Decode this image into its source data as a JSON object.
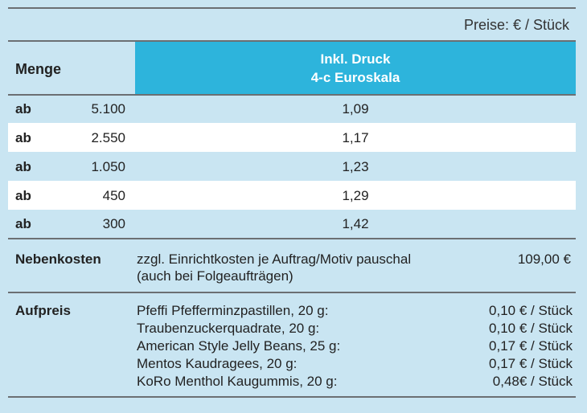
{
  "header": {
    "price_note": "Preise: € / Stück",
    "menge_label": "Menge",
    "druck_line1": "Inkl. Druck",
    "druck_line2": "4-c Euroskala"
  },
  "rows": [
    {
      "prefix": "ab",
      "qty": "5.100",
      "price": "1,09"
    },
    {
      "prefix": "ab",
      "qty": "2.550",
      "price": "1,17"
    },
    {
      "prefix": "ab",
      "qty": "1.050",
      "price": "1,23"
    },
    {
      "prefix": "ab",
      "qty": "450",
      "price": "1,29"
    },
    {
      "prefix": "ab",
      "qty": "300",
      "price": "1,42"
    }
  ],
  "nebenkosten": {
    "label": "Nebenkosten",
    "line1": "zzgl. Einrichtkosten je Auftrag/Motiv pauschal",
    "line2": "(auch bei Folgeaufträgen)",
    "price": "109,00 €"
  },
  "aufpreis": {
    "label": "Aufpreis",
    "items": [
      {
        "name": "Pfeffi Pfefferminzpastillen, 20 g:",
        "price": "0,10 € / Stück"
      },
      {
        "name": "Traubenzuckerquadrate, 20 g:",
        "price": "0,10 € / Stück"
      },
      {
        "name": "American Style Jelly Beans, 25 g:",
        "price": "0,17 € / Stück"
      },
      {
        "name": "Mentos Kaudragees, 20 g:",
        "price": "0,17 € / Stück"
      },
      {
        "name": "KoRo Menthol Kaugummis, 20 g:",
        "price": "0,48€ / Stück"
      }
    ]
  }
}
